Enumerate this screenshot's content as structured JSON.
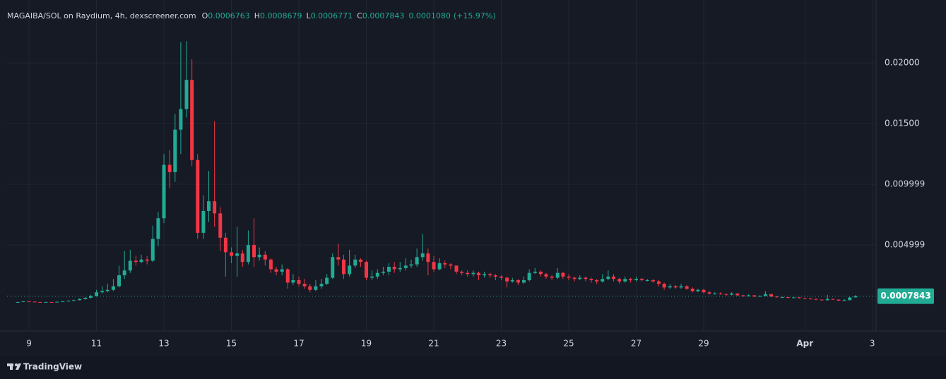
{
  "chart_data": {
    "type": "candlestick",
    "title": "MAGAIBA/SOL on Raydium, 4h, dexscreener.com",
    "ohlc_legend": [
      {
        "label": "O",
        "value": "0.0006763"
      },
      {
        "label": "H",
        "value": "0.0008679"
      },
      {
        "label": "L",
        "value": "0.0006771"
      },
      {
        "label": "C",
        "value": "0.0007843"
      }
    ],
    "change": "0.0001080",
    "change_pct": "(+15.97%)",
    "x": [
      8.67,
      8.83,
      9,
      9.17,
      9.33,
      9.5,
      9.67,
      9.83,
      10,
      10.17,
      10.33,
      10.5,
      10.67,
      10.83,
      11,
      11.17,
      11.33,
      11.5,
      11.67,
      11.83,
      12,
      12.17,
      12.33,
      12.5,
      12.67,
      12.83,
      13,
      13.17,
      13.33,
      13.5,
      13.67,
      13.83,
      14,
      14.17,
      14.33,
      14.5,
      14.67,
      14.83,
      15,
      15.17,
      15.33,
      15.5,
      15.67,
      15.83,
      16,
      16.17,
      16.33,
      16.5,
      16.67,
      16.83,
      17,
      17.17,
      17.33,
      17.5,
      17.67,
      17.83,
      18,
      18.17,
      18.33,
      18.5,
      18.67,
      18.83,
      19,
      19.17,
      19.33,
      19.5,
      19.67,
      19.83,
      20,
      20.17,
      20.33,
      20.5,
      20.67,
      20.83,
      21,
      21.17,
      21.33,
      21.5,
      21.67,
      21.83,
      22,
      22.17,
      22.33,
      22.5,
      22.67,
      22.83,
      23,
      23.17,
      23.33,
      23.5,
      23.67,
      23.83,
      24,
      24.17,
      24.33,
      24.5,
      24.67,
      24.83,
      25,
      25.17,
      25.33,
      25.5,
      25.67,
      25.83,
      26,
      26.17,
      26.33,
      26.5,
      26.67,
      26.83,
      27,
      27.17,
      27.33,
      27.5,
      27.67,
      27.83,
      28,
      28.17,
      28.33,
      28.5,
      28.67,
      28.83,
      29,
      29.17,
      29.33,
      29.5,
      29.67,
      29.83,
      30,
      30.17,
      30.33,
      30.5,
      30.67,
      30.83,
      31,
      31.17,
      31.33,
      31.5,
      31.67,
      31.83,
      32,
      32.17,
      32.33,
      32.5,
      32.67,
      32.83,
      33,
      33.17,
      33.33,
      33.5
    ],
    "open": [
      0.00028,
      0.0003,
      0.00035,
      0.00033,
      0.0003,
      0.00028,
      0.0003,
      0.00027,
      0.00032,
      0.00035,
      0.0004,
      0.00045,
      0.00055,
      0.00065,
      0.0008,
      0.0011,
      0.0012,
      0.0013,
      0.0016,
      0.0025,
      0.0029,
      0.0037,
      0.0036,
      0.0038,
      0.0037,
      0.0055,
      0.0072,
      0.0116,
      0.011,
      0.0145,
      0.0162,
      0.0186,
      0.012,
      0.006,
      0.0078,
      0.0086,
      0.0076,
      0.0056,
      0.0044,
      0.0041,
      0.0043,
      0.0036,
      0.005,
      0.004,
      0.0042,
      0.0038,
      0.003,
      0.0028,
      0.003,
      0.0019,
      0.0021,
      0.0018,
      0.0016,
      0.0013,
      0.0016,
      0.0018,
      0.0023,
      0.004,
      0.0038,
      0.0026,
      0.0033,
      0.0038,
      0.0036,
      0.0023,
      0.0024,
      0.0027,
      0.0028,
      0.0032,
      0.003,
      0.0031,
      0.0033,
      0.0034,
      0.004,
      0.0043,
      0.0036,
      0.003,
      0.0035,
      0.0034,
      0.0033,
      0.0028,
      0.0027,
      0.0026,
      0.0027,
      0.0025,
      0.0026,
      0.0025,
      0.0024,
      0.0023,
      0.002,
      0.0021,
      0.0019,
      0.0021,
      0.0027,
      0.0028,
      0.0026,
      0.0024,
      0.0023,
      0.0027,
      0.0024,
      0.0023,
      0.0022,
      0.0023,
      0.0022,
      0.0021,
      0.002,
      0.0022,
      0.0024,
      0.0022,
      0.002,
      0.0022,
      0.0021,
      0.0022,
      0.0021,
      0.0021,
      0.002,
      0.0018,
      0.0015,
      0.0016,
      0.0015,
      0.0016,
      0.0014,
      0.0012,
      0.0013,
      0.0011,
      0.001,
      0.001,
      0.00095,
      0.0009,
      0.001,
      0.00085,
      0.0008,
      0.00085,
      0.00075,
      0.0008,
      0.00095,
      0.00075,
      0.0007,
      0.0007,
      0.00065,
      0.00068,
      0.00062,
      0.0006,
      0.00055,
      0.0005,
      0.00045,
      0.00055,
      0.0005,
      0.00042,
      0.00045,
      0.0006763
    ],
    "high": [
      0.00033,
      0.00038,
      0.00037,
      0.00034,
      0.00032,
      0.00032,
      0.00031,
      0.00034,
      0.00038,
      0.00043,
      0.0005,
      0.0006,
      0.0007,
      0.0009,
      0.0013,
      0.0016,
      0.0018,
      0.0022,
      0.0033,
      0.0045,
      0.0046,
      0.0041,
      0.0042,
      0.0041,
      0.0066,
      0.0077,
      0.0125,
      0.0128,
      0.0158,
      0.0217,
      0.0218,
      0.0203,
      0.0125,
      0.0091,
      0.0111,
      0.0152,
      0.0081,
      0.006,
      0.0048,
      0.0065,
      0.0046,
      0.0062,
      0.0072,
      0.0048,
      0.0045,
      0.0039,
      0.0032,
      0.0034,
      0.0031,
      0.0026,
      0.0024,
      0.0022,
      0.0018,
      0.0021,
      0.0022,
      0.0026,
      0.0043,
      0.0051,
      0.0042,
      0.0046,
      0.0042,
      0.0039,
      0.0037,
      0.0029,
      0.003,
      0.0032,
      0.0035,
      0.0036,
      0.0036,
      0.0039,
      0.0038,
      0.0047,
      0.0059,
      0.0047,
      0.0041,
      0.0039,
      0.0037,
      0.0035,
      0.0033,
      0.0029,
      0.0029,
      0.0029,
      0.0028,
      0.0028,
      0.0027,
      0.0026,
      0.0025,
      0.0024,
      0.0023,
      0.0022,
      0.0024,
      0.003,
      0.0031,
      0.0029,
      0.0027,
      0.0025,
      0.0031,
      0.0028,
      0.0026,
      0.0024,
      0.0025,
      0.0024,
      0.0023,
      0.0022,
      0.0026,
      0.0029,
      0.0026,
      0.0023,
      0.0024,
      0.0023,
      0.0024,
      0.0023,
      0.0022,
      0.0022,
      0.0021,
      0.0019,
      0.0018,
      0.0017,
      0.0018,
      0.0017,
      0.0015,
      0.0014,
      0.0014,
      0.0012,
      0.0011,
      0.0011,
      0.001,
      0.0011,
      0.00105,
      0.0009,
      0.00092,
      0.00088,
      0.00085,
      0.0012,
      0.00098,
      0.00078,
      0.00075,
      0.00072,
      0.00072,
      0.0007,
      0.00065,
      0.00062,
      0.00058,
      0.00052,
      0.0009,
      0.00058,
      0.00052,
      0.00055,
      0.00072,
      0.0008679
    ],
    "low": [
      0.00025,
      0.00029,
      0.00031,
      0.00028,
      0.00026,
      0.00027,
      0.00025,
      0.00026,
      0.00031,
      0.00034,
      0.00038,
      0.00043,
      0.0005,
      0.0006,
      0.00075,
      0.001,
      0.0011,
      0.0012,
      0.0015,
      0.0022,
      0.0027,
      0.0033,
      0.0035,
      0.0034,
      0.0036,
      0.0049,
      0.0068,
      0.0097,
      0.0102,
      0.0125,
      0.0155,
      0.0115,
      0.0055,
      0.0055,
      0.0069,
      0.0065,
      0.0045,
      0.0024,
      0.0035,
      0.0024,
      0.0032,
      0.0034,
      0.0032,
      0.0037,
      0.0033,
      0.0027,
      0.0025,
      0.0025,
      0.0014,
      0.0017,
      0.0016,
      0.0014,
      0.0011,
      0.0012,
      0.0014,
      0.0017,
      0.0022,
      0.0033,
      0.0022,
      0.0024,
      0.0031,
      0.0032,
      0.0021,
      0.0021,
      0.0022,
      0.0025,
      0.0025,
      0.0027,
      0.0028,
      0.0029,
      0.0031,
      0.0032,
      0.0037,
      0.0025,
      0.0028,
      0.0029,
      0.0031,
      0.003,
      0.0026,
      0.0025,
      0.0024,
      0.0024,
      0.0021,
      0.0023,
      0.0023,
      0.0021,
      0.0021,
      0.0015,
      0.0019,
      0.0017,
      0.0018,
      0.002,
      0.0026,
      0.0024,
      0.0022,
      0.0021,
      0.0022,
      0.0022,
      0.0021,
      0.002,
      0.0021,
      0.002,
      0.0019,
      0.0018,
      0.0019,
      0.0021,
      0.002,
      0.0018,
      0.0019,
      0.0019,
      0.002,
      0.002,
      0.002,
      0.0019,
      0.0016,
      0.0013,
      0.0014,
      0.0014,
      0.0014,
      0.0013,
      0.0011,
      0.0011,
      0.001,
      0.0009,
      0.0009,
      0.00088,
      0.00082,
      0.00085,
      0.0008,
      0.00072,
      0.00075,
      0.0007,
      0.00072,
      0.00078,
      0.0007,
      0.00065,
      0.00066,
      0.0006,
      0.00062,
      0.00058,
      0.00055,
      0.0005,
      0.00045,
      0.0004,
      0.00043,
      0.00046,
      0.00038,
      0.0004,
      0.00043,
      0.0006771
    ],
    "close": [
      0.0003,
      0.00035,
      0.00033,
      0.0003,
      0.00028,
      0.0003,
      0.00027,
      0.00032,
      0.00035,
      0.0004,
      0.00045,
      0.00055,
      0.00065,
      0.0008,
      0.0011,
      0.0012,
      0.0013,
      0.0016,
      0.0025,
      0.0029,
      0.0037,
      0.0036,
      0.0038,
      0.0037,
      0.0055,
      0.0072,
      0.0116,
      0.011,
      0.0145,
      0.0162,
      0.0186,
      0.012,
      0.006,
      0.0078,
      0.0086,
      0.0076,
      0.0056,
      0.0044,
      0.0041,
      0.0043,
      0.0036,
      0.005,
      0.004,
      0.0042,
      0.0038,
      0.003,
      0.0028,
      0.003,
      0.0019,
      0.0021,
      0.0018,
      0.0016,
      0.0013,
      0.0016,
      0.0018,
      0.0023,
      0.004,
      0.0038,
      0.0026,
      0.0033,
      0.0038,
      0.0036,
      0.0023,
      0.0024,
      0.0027,
      0.0028,
      0.0032,
      0.003,
      0.0031,
      0.0033,
      0.0034,
      0.004,
      0.0043,
      0.0036,
      0.003,
      0.0035,
      0.0034,
      0.0033,
      0.0028,
      0.0027,
      0.0026,
      0.0027,
      0.0025,
      0.0026,
      0.0025,
      0.0024,
      0.0023,
      0.002,
      0.0021,
      0.0019,
      0.0021,
      0.0027,
      0.0028,
      0.0026,
      0.0024,
      0.0023,
      0.0027,
      0.0024,
      0.0023,
      0.0022,
      0.0023,
      0.0022,
      0.0021,
      0.002,
      0.0022,
      0.0024,
      0.0022,
      0.002,
      0.0022,
      0.0021,
      0.0022,
      0.0021,
      0.0021,
      0.002,
      0.0018,
      0.0015,
      0.0016,
      0.0015,
      0.0016,
      0.0014,
      0.0012,
      0.0013,
      0.0011,
      0.001,
      0.001,
      0.00095,
      0.0009,
      0.001,
      0.00085,
      0.0008,
      0.00085,
      0.00075,
      0.0008,
      0.00095,
      0.00075,
      0.0007,
      0.0007,
      0.00065,
      0.00068,
      0.00062,
      0.0006,
      0.00055,
      0.0005,
      0.00045,
      0.00055,
      0.0005,
      0.00042,
      0.00045,
      0.0006763,
      0.0007843
    ],
    "xlim": [
      8.35,
      34.11
    ],
    "xticks": [
      9,
      11,
      13,
      15,
      17,
      19,
      21,
      23,
      25,
      27,
      29,
      {
        "value": 32,
        "label": "Apr"
      },
      {
        "value": 34,
        "label": "3"
      }
    ],
    "ylim": [
      -0.00203,
      0.0246
    ],
    "yticks": [
      {
        "value": 0.02,
        "label": "0.02000"
      },
      {
        "value": 0.015,
        "label": "0.01500"
      },
      0.009999,
      0.004999
    ],
    "last_price": 0.0007843,
    "up_color": "#22ab94",
    "down_color": "#f23645",
    "grid": true
  },
  "footer": {
    "brand": "TradingView"
  }
}
